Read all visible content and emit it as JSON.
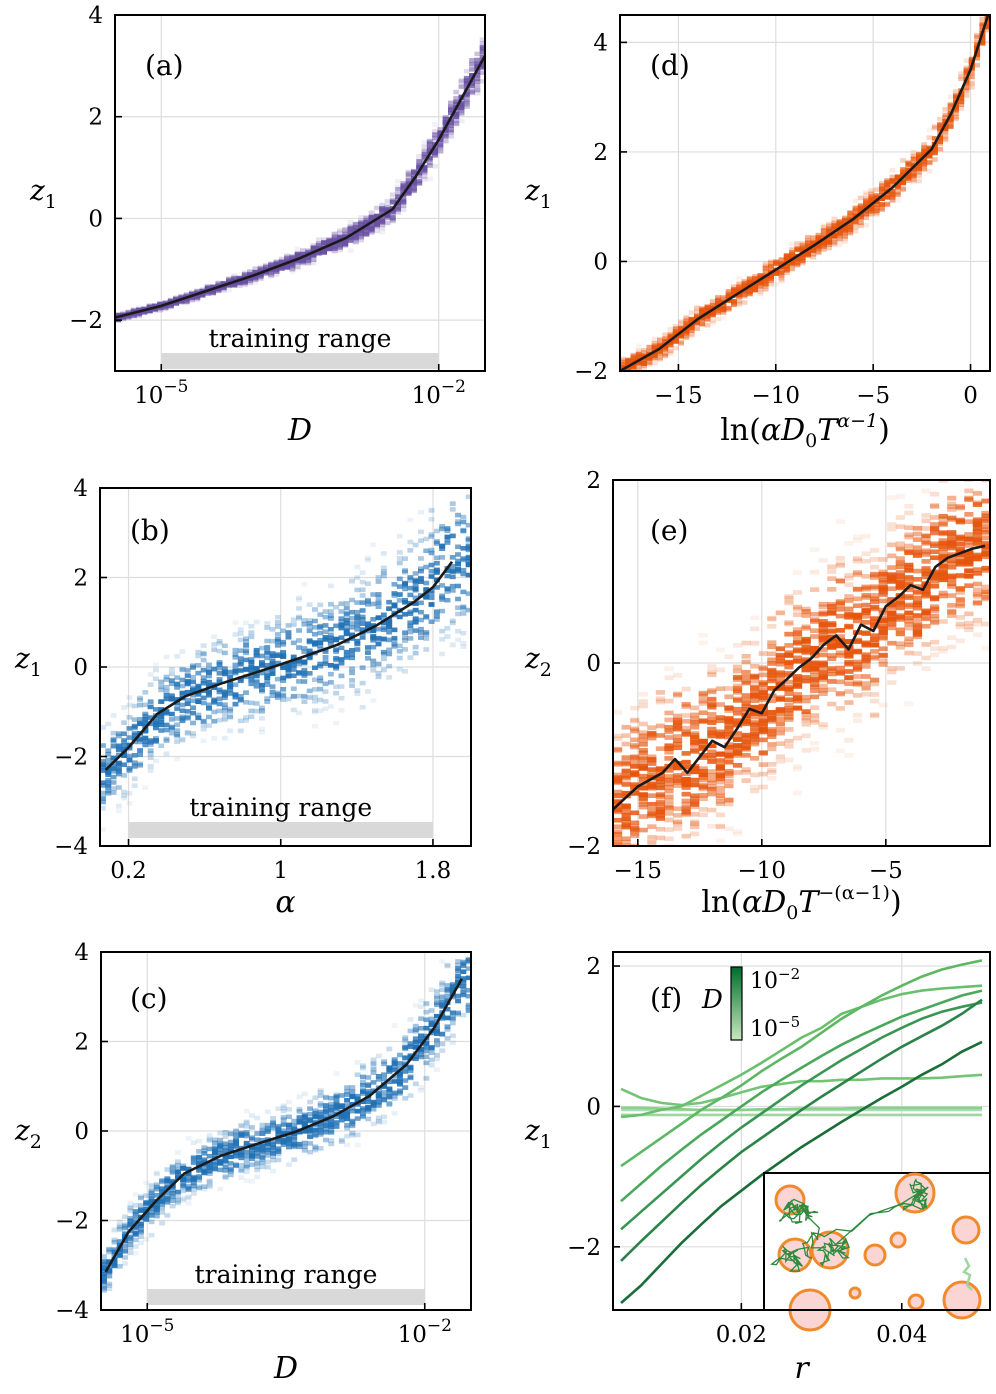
{
  "chart_data": [
    {
      "panel": "(a)",
      "type": "heatmap",
      "xlabel": "D",
      "ylabel": "z1",
      "ylabel_main": "z",
      "ylabel_sub": "1",
      "xscale": "log",
      "xlim": [
        -5.5,
        -1.5
      ],
      "ylim": [
        -3,
        4
      ],
      "xticks": [
        {
          "v": -5,
          "base": "10",
          "exp": "−5"
        },
        {
          "v": -2,
          "base": "10",
          "exp": "−2"
        }
      ],
      "yticks": [
        {
          "v": -2,
          "label": "−2"
        },
        {
          "v": 0,
          "label": "0"
        },
        {
          "v": 2,
          "label": "2"
        },
        {
          "v": 4,
          "label": "4"
        }
      ],
      "training_range": {
        "label": "training range",
        "from": -5,
        "to": -2
      },
      "color": "#6a51a3",
      "spread_lo": 0.04,
      "spread_hi": 0.25,
      "series": [
        {
          "name": "mean",
          "x": [
            -5.5,
            -5.0,
            -4.5,
            -4.0,
            -3.5,
            -3.0,
            -2.5,
            -2.25,
            -2.0,
            -1.5
          ],
          "y": [
            -1.95,
            -1.72,
            -1.42,
            -1.12,
            -0.78,
            -0.38,
            0.18,
            0.82,
            1.55,
            3.2
          ]
        }
      ]
    },
    {
      "panel": "(b)",
      "type": "heatmap",
      "xlabel": "α",
      "ylabel": "z1",
      "ylabel_main": "z",
      "ylabel_sub": "1",
      "xscale": "linear",
      "xlim": [
        0.05,
        2.0
      ],
      "ylim": [
        -4,
        4
      ],
      "xticks": [
        {
          "v": 0.2,
          "label": "0.2"
        },
        {
          "v": 1,
          "label": "1"
        },
        {
          "v": 1.8,
          "label": "1.8"
        }
      ],
      "yticks": [
        {
          "v": -4,
          "label": "−4"
        },
        {
          "v": -2,
          "label": "−2"
        },
        {
          "v": 0,
          "label": "0"
        },
        {
          "v": 2,
          "label": "2"
        },
        {
          "v": 4,
          "label": "4"
        }
      ],
      "training_range": {
        "label": "training range",
        "from": 0.2,
        "to": 1.8
      },
      "color": "#2171b5",
      "spread_lo": 0.55,
      "spread_hi": 1.0,
      "series": [
        {
          "name": "mean",
          "x": [
            0.08,
            0.2,
            0.35,
            0.5,
            0.7,
            0.9,
            1.1,
            1.3,
            1.5,
            1.7,
            1.8,
            1.9
          ],
          "y": [
            -2.3,
            -1.8,
            -1.05,
            -0.65,
            -0.35,
            -0.08,
            0.2,
            0.5,
            0.92,
            1.45,
            1.78,
            2.35
          ]
        }
      ]
    },
    {
      "panel": "(c)",
      "type": "heatmap",
      "xlabel": "D",
      "ylabel": "z2",
      "ylabel_main": "z",
      "ylabel_sub": "2",
      "xscale": "log",
      "xlim": [
        -5.5,
        -1.5
      ],
      "ylim": [
        -4,
        4
      ],
      "xticks": [
        {
          "v": -5,
          "base": "10",
          "exp": "−5"
        },
        {
          "v": -2,
          "base": "10",
          "exp": "−2"
        }
      ],
      "yticks": [
        {
          "v": -4,
          "label": "−4"
        },
        {
          "v": -2,
          "label": "−2"
        },
        {
          "v": 0,
          "label": "0"
        },
        {
          "v": 2,
          "label": "2"
        },
        {
          "v": 4,
          "label": "4"
        }
      ],
      "training_range": {
        "label": "training range",
        "from": -5,
        "to": -2
      },
      "color": "#2171b5",
      "spread_lo": 0.3,
      "spread_hi": 0.55,
      "series": [
        {
          "name": "mean",
          "x": [
            -5.45,
            -5.2,
            -4.9,
            -4.6,
            -4.2,
            -3.8,
            -3.4,
            -3.0,
            -2.6,
            -2.2,
            -1.9,
            -1.6
          ],
          "y": [
            -3.15,
            -2.25,
            -1.55,
            -0.95,
            -0.55,
            -0.28,
            -0.02,
            0.32,
            0.78,
            1.48,
            2.3,
            3.4
          ]
        }
      ]
    },
    {
      "panel": "(d)",
      "type": "heatmap",
      "xlabel": "ln(αD0T^(α−1))",
      "ylabel": "z1",
      "ylabel_main": "z",
      "ylabel_sub": "1",
      "xscale": "linear",
      "xlim": [
        -18,
        1
      ],
      "ylim": [
        -2,
        4.5
      ],
      "xticks": [
        {
          "v": -15,
          "label": "−15"
        },
        {
          "v": -10,
          "label": "−10"
        },
        {
          "v": -5,
          "label": "−5"
        },
        {
          "v": 0,
          "label": "0"
        }
      ],
      "yticks": [
        {
          "v": -2,
          "label": "−2"
        },
        {
          "v": 0,
          "label": "0"
        },
        {
          "v": 2,
          "label": "2"
        },
        {
          "v": 4,
          "label": "4"
        }
      ],
      "color": "#e6550d",
      "spread_lo": 0.12,
      "spread_hi": 0.2,
      "series": [
        {
          "name": "mean",
          "x": [
            -18,
            -16,
            -14,
            -12,
            -10,
            -8,
            -6,
            -4,
            -2,
            -1,
            0,
            0.9
          ],
          "y": [
            -2.0,
            -1.6,
            -1.05,
            -0.6,
            -0.15,
            0.3,
            0.78,
            1.35,
            2.05,
            2.7,
            3.5,
            4.5
          ]
        }
      ]
    },
    {
      "panel": "(e)",
      "type": "heatmap",
      "xlabel": "ln(αD0T^−(α−1))",
      "ylabel": "z2",
      "ylabel_main": "z",
      "ylabel_sub": "2",
      "xscale": "linear",
      "xlim": [
        -16,
        -0.8
      ],
      "ylim": [
        -2,
        2
      ],
      "xticks": [
        {
          "v": -15,
          "label": "−15"
        },
        {
          "v": -10,
          "label": "−10"
        },
        {
          "v": -5,
          "label": "−5"
        }
      ],
      "yticks": [
        {
          "v": -2,
          "label": "−2"
        },
        {
          "v": 0,
          "label": "0"
        },
        {
          "v": 2,
          "label": "2"
        }
      ],
      "color": "#e6550d",
      "spread_lo": 0.5,
      "spread_hi": 0.5,
      "series": [
        {
          "name": "mean",
          "x": [
            -16,
            -15,
            -14,
            -13.5,
            -13,
            -12,
            -11.5,
            -11,
            -10.5,
            -10,
            -9.5,
            -9,
            -8.5,
            -8,
            -7.5,
            -7,
            -6.5,
            -6,
            -5.5,
            -5,
            -4.5,
            -4,
            -3.5,
            -3,
            -2.5,
            -2,
            -1.5,
            -1
          ],
          "y": [
            -1.6,
            -1.35,
            -1.2,
            -1.05,
            -1.2,
            -0.85,
            -0.92,
            -0.72,
            -0.5,
            -0.55,
            -0.3,
            -0.18,
            -0.05,
            0.05,
            0.2,
            0.3,
            0.15,
            0.42,
            0.35,
            0.62,
            0.72,
            0.85,
            0.8,
            1.05,
            1.15,
            1.2,
            1.25,
            1.28
          ]
        }
      ]
    },
    {
      "panel": "(f)",
      "type": "line",
      "xlabel": "r",
      "ylabel": "z1",
      "ylabel_main": "z",
      "ylabel_sub": "1",
      "xlim": [
        0.004,
        0.051
      ],
      "ylim": [
        -2.9,
        2.2
      ],
      "xticks": [
        {
          "v": 0.02,
          "label": "0.02"
        },
        {
          "v": 0.04,
          "label": "0.04"
        }
      ],
      "yticks": [
        {
          "v": -2,
          "label": "−2"
        },
        {
          "v": 0,
          "label": "0"
        },
        {
          "v": 2,
          "label": "2"
        }
      ],
      "colorbar": {
        "label": "D",
        "max": {
          "base": "10",
          "exp": "−2"
        },
        "min": {
          "base": "10",
          "exp": "−5"
        }
      },
      "x": [
        0.005,
        0.0075,
        0.01,
        0.0125,
        0.015,
        0.0175,
        0.02,
        0.0225,
        0.025,
        0.0275,
        0.03,
        0.0325,
        0.035,
        0.0375,
        0.04,
        0.0425,
        0.045,
        0.0475,
        0.05
      ],
      "series": [
        {
          "name": "D=1e-5",
          "color": "#a8ddb5",
          "values": [
            -0.05,
            -0.05,
            -0.05,
            -0.05,
            -0.05,
            -0.05,
            -0.05,
            -0.05,
            -0.05,
            -0.05,
            -0.05,
            -0.05,
            -0.05,
            -0.05,
            -0.05,
            -0.05,
            -0.05,
            -0.05,
            -0.05
          ]
        },
        {
          "name": "D=3e-5",
          "color": "#9ed69e",
          "values": [
            -0.12,
            -0.12,
            -0.12,
            -0.12,
            -0.12,
            -0.12,
            -0.12,
            -0.12,
            -0.12,
            -0.12,
            -0.12,
            -0.12,
            -0.12,
            -0.12,
            -0.12,
            -0.12,
            -0.12,
            -0.12,
            -0.12
          ]
        },
        {
          "name": "D=1e-4",
          "color": "#8ccf8c",
          "values": [
            -0.02,
            -0.02,
            -0.03,
            -0.04,
            -0.05,
            -0.05,
            -0.05,
            -0.04,
            -0.04,
            -0.03,
            -0.03,
            -0.03,
            -0.02,
            -0.02,
            -0.02,
            -0.02,
            -0.02,
            -0.02,
            -0.02
          ]
        },
        {
          "name": "D=2e-4",
          "color": "#74c476",
          "values": [
            0.25,
            0.12,
            0.05,
            0.02,
            0.05,
            0.12,
            0.2,
            0.28,
            0.32,
            0.36,
            0.36,
            0.38,
            0.38,
            0.4,
            0.4,
            0.4,
            0.41,
            0.43,
            0.45
          ]
        },
        {
          "name": "D=5e-4",
          "color": "#6abf6c",
          "values": [
            -0.15,
            -0.12,
            -0.05,
            0.0,
            0.15,
            0.3,
            0.45,
            0.62,
            0.8,
            0.98,
            1.12,
            1.32,
            1.42,
            1.52,
            1.6,
            1.65,
            1.68,
            1.7,
            1.72
          ]
        },
        {
          "name": "D=1e-3",
          "color": "#5db763",
          "values": [
            -0.85,
            -0.65,
            -0.45,
            -0.25,
            -0.05,
            0.12,
            0.3,
            0.5,
            0.68,
            0.85,
            1.05,
            1.25,
            1.42,
            1.58,
            1.72,
            1.85,
            1.95,
            2.02,
            2.08
          ]
        },
        {
          "name": "D=2e-3",
          "color": "#4aa85a",
          "values": [
            -1.35,
            -1.1,
            -0.85,
            -0.62,
            -0.4,
            -0.2,
            0.0,
            0.2,
            0.38,
            0.55,
            0.72,
            0.88,
            1.02,
            1.15,
            1.28,
            1.38,
            1.48,
            1.58,
            1.65
          ]
        },
        {
          "name": "D=4e-3",
          "color": "#399552",
          "values": [
            -1.75,
            -1.5,
            -1.25,
            -1.0,
            -0.75,
            -0.52,
            -0.3,
            -0.1,
            0.1,
            0.3,
            0.48,
            0.66,
            0.82,
            0.98,
            1.12,
            1.25,
            1.35,
            1.42,
            1.48
          ]
        },
        {
          "name": "D=6e-3",
          "color": "#2b8348",
          "values": [
            -2.2,
            -1.92,
            -1.65,
            -1.38,
            -1.12,
            -0.88,
            -0.65,
            -0.45,
            -0.25,
            -0.05,
            0.14,
            0.32,
            0.5,
            0.68,
            0.85,
            1.0,
            1.15,
            1.32,
            1.52
          ]
        },
        {
          "name": "D=1e-2",
          "color": "#1a6e38",
          "values": [
            -2.8,
            -2.55,
            -2.25,
            -1.95,
            -1.68,
            -1.42,
            -1.2,
            -0.98,
            -0.78,
            -0.58,
            -0.4,
            -0.22,
            -0.05,
            0.12,
            0.28,
            0.45,
            0.6,
            0.78,
            0.92
          ]
        }
      ]
    }
  ]
}
